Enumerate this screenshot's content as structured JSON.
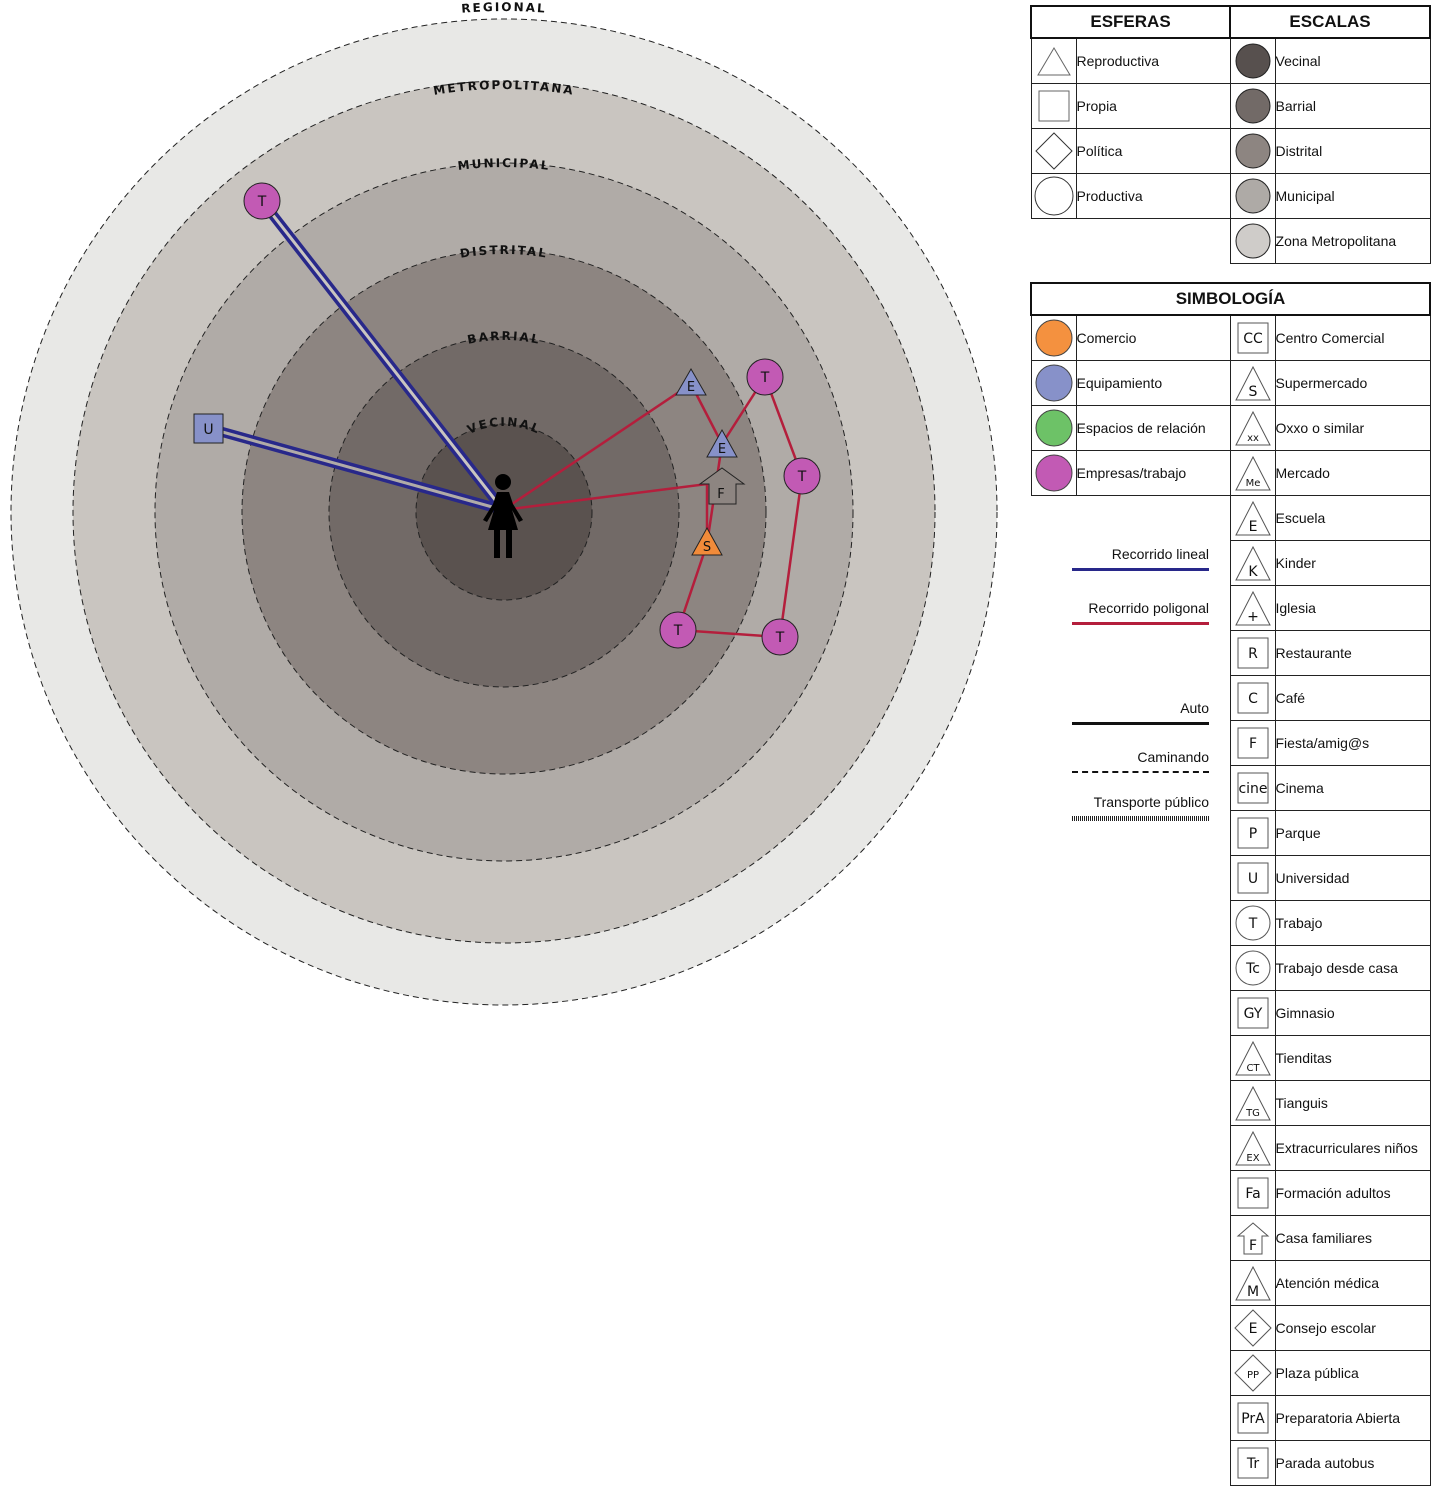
{
  "rings": [
    {
      "name": "REGIONAL",
      "color": "#e8e8e6"
    },
    {
      "name": "METROPOLITANA",
      "color": "#c9c5c0"
    },
    {
      "name": "MUNICIPAL",
      "color": "#b0aba7"
    },
    {
      "name": "DISTRITAL",
      "color": "#8d8581"
    },
    {
      "name": "BARRIAL",
      "color": "#726a67"
    },
    {
      "name": "VECINAL",
      "color": "#5a524f"
    }
  ],
  "nodes": [
    {
      "id": "T-metro",
      "label": "T",
      "shape": "circle",
      "color": "#c25ab4"
    },
    {
      "id": "U",
      "label": "U",
      "shape": "square",
      "color": "#8791c9"
    },
    {
      "id": "E1",
      "label": "E",
      "shape": "triangle",
      "color": "#8791c9"
    },
    {
      "id": "E2",
      "label": "E",
      "shape": "triangle",
      "color": "#8791c9"
    },
    {
      "id": "F",
      "label": "F",
      "shape": "house",
      "color": "#8d8581"
    },
    {
      "id": "S",
      "label": "S",
      "shape": "triangle",
      "color": "#f18b3a"
    },
    {
      "id": "T1",
      "label": "T",
      "shape": "circle",
      "color": "#c25ab4"
    },
    {
      "id": "T2",
      "label": "T",
      "shape": "circle",
      "color": "#c25ab4"
    },
    {
      "id": "T3",
      "label": "T",
      "shape": "circle",
      "color": "#c25ab4"
    },
    {
      "id": "T4",
      "label": "T",
      "shape": "circle",
      "color": "#c25ab4"
    }
  ],
  "colors": {
    "linear": "#28288a",
    "polygonal": "#b41e3c"
  },
  "esferas": {
    "title": "ESFERAS",
    "items": [
      {
        "label": "Reproductiva",
        "icon": "triangle-icon"
      },
      {
        "label": "Propia",
        "icon": "square-icon"
      },
      {
        "label": "Política",
        "icon": "diamond-icon"
      },
      {
        "label": "Productiva",
        "icon": "circle-icon"
      }
    ]
  },
  "escalas": {
    "title": "ESCALAS",
    "items": [
      {
        "label": "Vecinal",
        "color": "#57504e"
      },
      {
        "label": "Barrial",
        "color": "#726a67"
      },
      {
        "label": "Distrital",
        "color": "#8d8581"
      },
      {
        "label": "Municipal",
        "color": "#aeaaa6"
      },
      {
        "label": "Zona Metropolitana",
        "color": "#cfccc9"
      }
    ]
  },
  "simbologia": {
    "title": "SIMBOLOGÍA",
    "colors": [
      {
        "label": "Comercio",
        "color": "#f4913f"
      },
      {
        "label": "Equipamiento",
        "color": "#8791c9"
      },
      {
        "label": "Espacios de relación",
        "color": "#6dc267"
      },
      {
        "label": "Empresas/trabajo",
        "color": "#c25ab4"
      }
    ],
    "symbols": [
      {
        "code": "CC",
        "shape": "square",
        "label": "Centro Comercial"
      },
      {
        "code": "S",
        "shape": "triangle",
        "label": "Supermercado"
      },
      {
        "code": "xx",
        "shape": "triangle",
        "label": "Oxxo o similar"
      },
      {
        "code": "Me",
        "shape": "triangle",
        "label": "Mercado"
      },
      {
        "code": "E",
        "shape": "triangle",
        "label": "Escuela"
      },
      {
        "code": "K",
        "shape": "triangle",
        "label": "Kinder"
      },
      {
        "code": "+",
        "shape": "triangle",
        "label": "Iglesia"
      },
      {
        "code": "R",
        "shape": "square",
        "label": "Restaurante"
      },
      {
        "code": "C",
        "shape": "square",
        "label": "Café"
      },
      {
        "code": "F",
        "shape": "square",
        "label": "Fiesta/amig@s"
      },
      {
        "code": "cine",
        "shape": "square",
        "label": "Cinema"
      },
      {
        "code": "P",
        "shape": "square",
        "label": "Parque"
      },
      {
        "code": "U",
        "shape": "square",
        "label": "Universidad"
      },
      {
        "code": "T",
        "shape": "circle",
        "label": "Trabajo"
      },
      {
        "code": "Tc",
        "shape": "circle",
        "label": "Trabajo desde casa"
      },
      {
        "code": "GY",
        "shape": "square",
        "label": "Gimnasio"
      },
      {
        "code": "CT",
        "shape": "triangle",
        "label": "Tienditas"
      },
      {
        "code": "TG",
        "shape": "triangle",
        "label": "Tianguis"
      },
      {
        "code": "EX",
        "shape": "triangle",
        "label": "Extracurriculares niños"
      },
      {
        "code": "Fa",
        "shape": "square",
        "label": "Formación adultos"
      },
      {
        "code": "F",
        "shape": "house",
        "label": "Casa familiares"
      },
      {
        "code": "M",
        "shape": "triangle",
        "label": "Atención médica"
      },
      {
        "code": "E",
        "shape": "diamond",
        "label": "Consejo escolar"
      },
      {
        "code": "PP",
        "shape": "diamond",
        "label": "Plaza pública"
      },
      {
        "code": "PrA",
        "shape": "square",
        "label": "Preparatoria Abierta"
      },
      {
        "code": "Tr",
        "shape": "square",
        "label": "Parada autobus"
      }
    ]
  },
  "lines": {
    "recorrido_lineal": "Recorrido lineal",
    "recorrido_poligonal": "Recorrido poligonal",
    "auto": "Auto",
    "caminando": "Caminando",
    "transporte_publico": "Transporte público"
  }
}
